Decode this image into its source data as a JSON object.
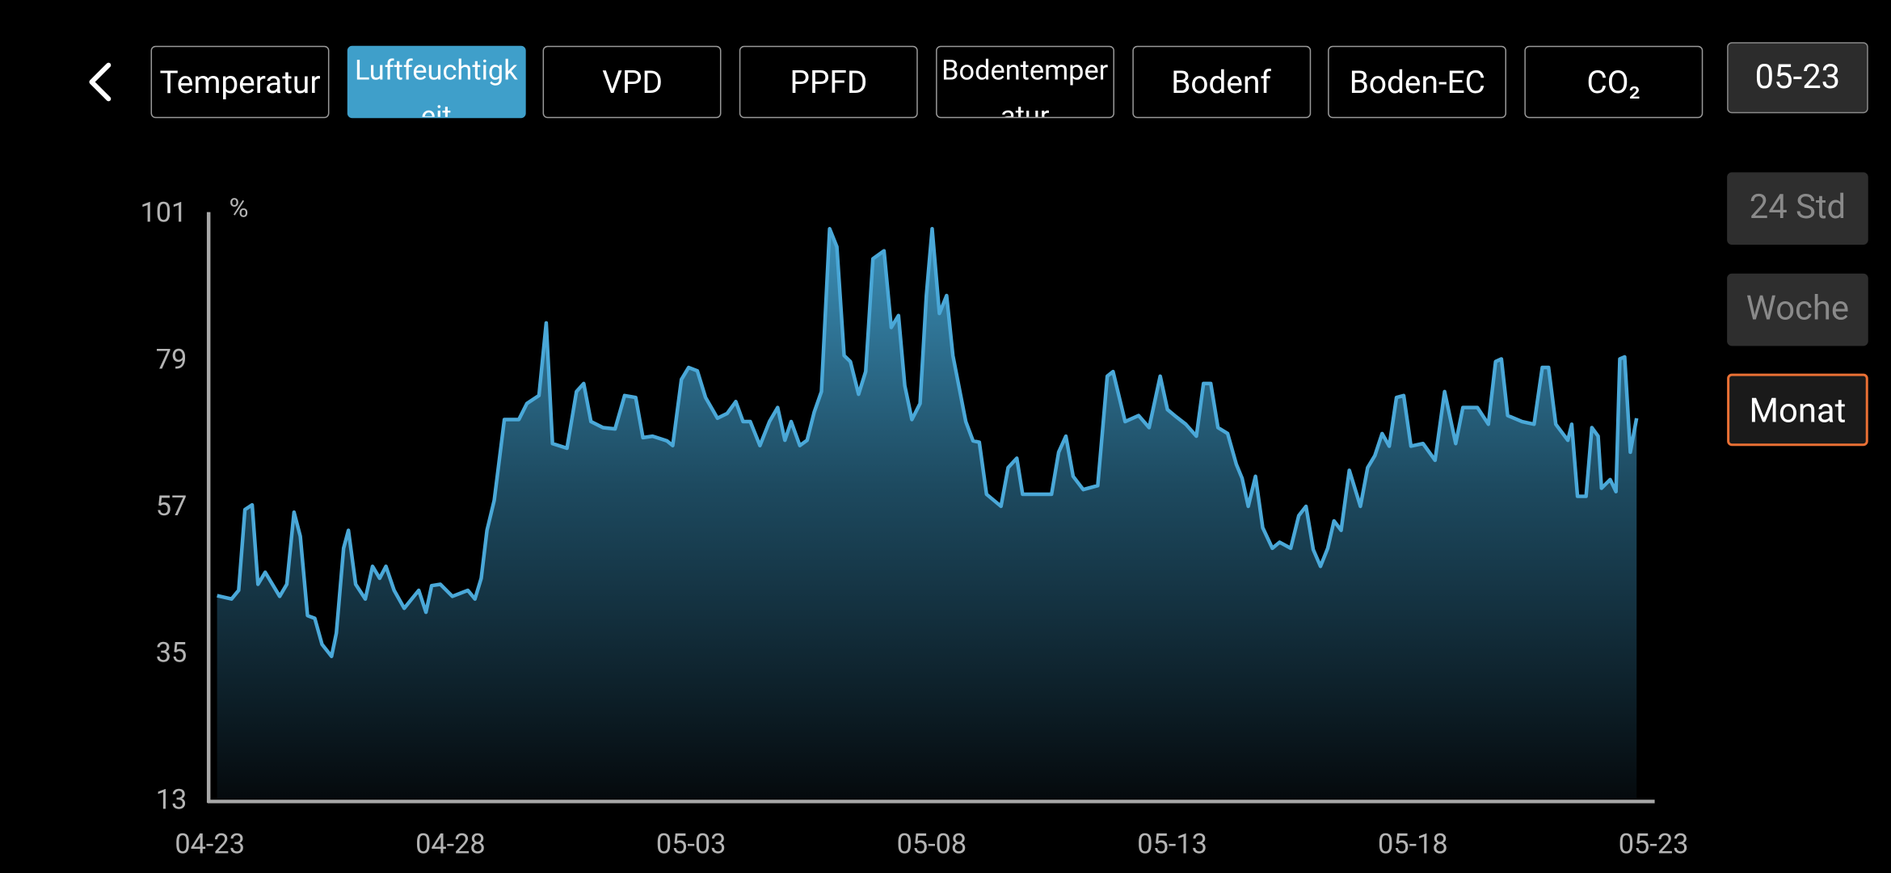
{
  "header": {
    "tabs": [
      {
        "label": "Temperatur"
      },
      {
        "label": "Luftfeuchtigkeit",
        "selected": true
      },
      {
        "label": "VPD"
      },
      {
        "label": "PPFD"
      },
      {
        "label": "Bodentemperatur"
      },
      {
        "label": "Bodenf"
      },
      {
        "label": "Boden-EC"
      },
      {
        "label": "CO₂"
      }
    ],
    "date": "05-23",
    "ranges": [
      {
        "label": "24 Std"
      },
      {
        "label": "Woche"
      },
      {
        "label": "Monat",
        "selected": true
      }
    ]
  },
  "chart_data": {
    "type": "area",
    "y_unit": "%",
    "color": "#4aa8d8",
    "x": [
      0.15,
      0.45,
      0.6,
      0.73,
      0.88,
      1.0,
      1.15,
      1.45,
      1.6,
      1.75,
      1.88,
      2.03,
      2.18,
      2.33,
      2.53,
      2.63,
      2.78,
      2.88,
      3.03,
      3.23,
      3.38,
      3.53,
      3.66,
      3.83,
      4.04,
      4.34,
      4.49,
      4.61,
      4.79,
      5.04,
      5.36,
      5.51,
      5.64,
      5.76,
      5.91,
      6.12,
      6.42,
      6.59,
      6.84,
      6.99,
      7.12,
      7.42,
      7.62,
      7.77,
      7.92,
      8.17,
      8.42,
      8.62,
      8.85,
      9.0,
      9.2,
      9.5,
      9.62,
      9.8,
      9.95,
      10.13,
      10.3,
      10.55,
      10.75,
      10.93,
      11.08,
      11.23,
      11.43,
      11.63,
      11.8,
      11.95,
      12.08,
      12.26,
      12.41,
      12.56,
      12.71,
      12.88,
      13.03,
      13.18,
      13.31,
      13.48,
      13.63,
      13.78,
      14.01,
      14.16,
      14.31,
      14.44,
      14.59,
      14.76,
      14.89,
      15.01,
      15.16,
      15.31,
      15.44,
      15.71,
      15.86,
      15.99,
      16.14,
      16.44,
      16.59,
      16.77,
      16.89,
      17.19,
      17.49,
      17.64,
      17.79,
      17.94,
      18.15,
      18.45,
      18.65,
      18.77,
      19.02,
      19.3,
      19.52,
      19.75,
      19.9,
      20.05,
      20.28,
      20.5,
      20.65,
      20.8,
      20.95,
      21.15,
      21.33,
      21.45,
      21.58,
      21.73,
      21.88,
      22.08,
      22.23,
      22.46,
      22.63,
      22.78,
      22.93,
      23.08,
      23.23,
      23.36,
      23.51,
      23.68,
      23.91,
      24.06,
      24.21,
      24.36,
      24.51,
      24.66,
      24.81,
      24.96,
      25.21,
      25.46,
      25.66,
      25.89,
      26.04,
      26.34,
      26.57,
      26.72,
      26.84,
      26.97,
      27.27,
      27.52,
      27.69,
      27.82,
      27.97,
      28.22,
      28.3,
      28.42,
      28.6,
      28.72,
      28.85,
      28.92,
      29.1,
      29.22,
      29.3,
      29.4,
      29.52,
      29.65
    ],
    "values": [
      43.5,
      43.0,
      44.3,
      56.4,
      57.1,
      45.2,
      47.0,
      43.4,
      45.2,
      56.0,
      52.4,
      40.5,
      40.1,
      36.2,
      34.4,
      37.9,
      50.6,
      53.3,
      45.2,
      43.0,
      47.9,
      46.1,
      47.9,
      44.3,
      41.6,
      44.3,
      41.0,
      45.0,
      45.2,
      43.4,
      44.3,
      43.0,
      46.1,
      53.3,
      57.8,
      69.9,
      69.9,
      72.3,
      73.5,
      84.4,
      66.3,
      65.6,
      74.1,
      75.3,
      69.6,
      68.7,
      68.5,
      73.5,
      73.2,
      67.2,
      67.4,
      66.7,
      66.0,
      75.9,
      77.7,
      77.2,
      73.2,
      70.1,
      70.8,
      72.6,
      69.6,
      69.6,
      66.0,
      69.6,
      71.7,
      66.8,
      69.6,
      66.0,
      66.8,
      71.0,
      74.1,
      98.5,
      95.8,
      79.5,
      78.6,
      73.7,
      77.1,
      94.0,
      95.2,
      83.7,
      85.5,
      75.0,
      69.9,
      72.3,
      88.5,
      98.5,
      85.8,
      88.5,
      79.5,
      69.6,
      66.7,
      66.5,
      58.7,
      56.9,
      62.7,
      64.1,
      58.7,
      58.7,
      58.7,
      65.0,
      67.4,
      61.4,
      59.4,
      60.0,
      76.4,
      77.1,
      69.6,
      70.5,
      68.7,
      76.4,
      71.4,
      70.5,
      69.2,
      67.4,
      75.3,
      75.3,
      68.7,
      67.8,
      63.2,
      61.1,
      56.9,
      61.4,
      53.7,
      50.6,
      51.5,
      50.6,
      55.5,
      56.9,
      50.4,
      47.9,
      50.6,
      54.7,
      53.3,
      62.3,
      56.9,
      62.7,
      64.5,
      67.8,
      65.9,
      73.2,
      73.5,
      65.9,
      66.3,
      63.8,
      74.1,
      66.3,
      71.7,
      71.7,
      69.2,
      78.6,
      79.0,
      70.5,
      69.6,
      69.2,
      77.7,
      77.7,
      69.2,
      66.8,
      69.2,
      58.4,
      58.4,
      68.7,
      67.4,
      59.6,
      60.9,
      59.1,
      79.0,
      79.3,
      65.0,
      70.1
    ],
    "xlim": [
      0,
      30
    ],
    "xticks": [
      {
        "value": 0,
        "label": "04-23"
      },
      {
        "value": 5,
        "label": "04-28"
      },
      {
        "value": 10,
        "label": "05-03"
      },
      {
        "value": 15,
        "label": "05-08"
      },
      {
        "value": 20,
        "label": "05-13"
      },
      {
        "value": 25,
        "label": "05-18"
      },
      {
        "value": 30,
        "label": "05-23"
      }
    ],
    "ylim": [
      13,
      101
    ],
    "yticks": [
      13,
      35,
      57,
      79,
      101
    ]
  }
}
